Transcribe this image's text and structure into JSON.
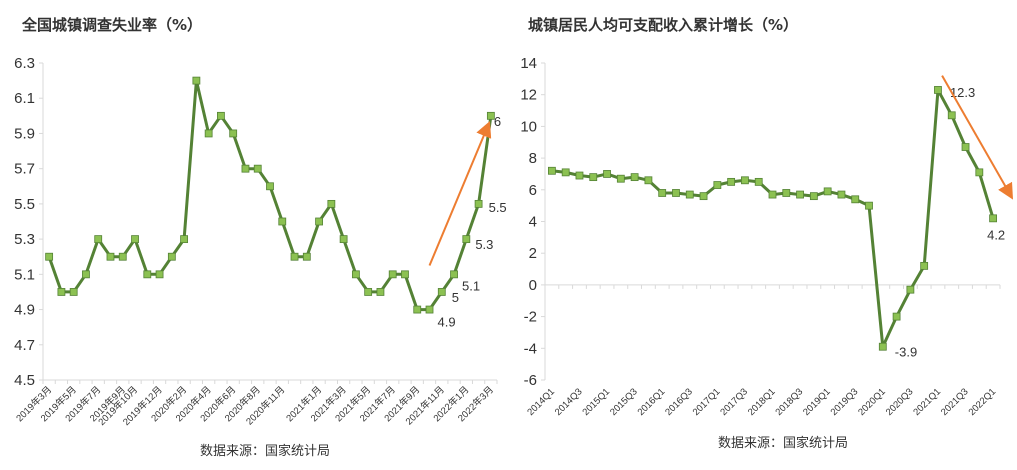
{
  "charts_meta": {
    "left_source": "数据来源：国家统计局",
    "right_source": "数据来源：国家统计局"
  },
  "colors": {
    "line": "#548235",
    "marker": "#8cc152",
    "arrow": "#ed7d31",
    "axis": "#d9d9d9",
    "text": "#333333"
  },
  "chart_data": [
    {
      "type": "line",
      "title": "全国城镇调查失业率（%）",
      "xlabel": "",
      "ylabel": "",
      "ylim": [
        4.5,
        6.3
      ],
      "yticks": [
        "4.5",
        "4.7",
        "4.9",
        "5.1",
        "5.3",
        "5.5",
        "5.7",
        "5.9",
        "6.1",
        "6.3"
      ],
      "grid": false,
      "legend": "none",
      "x": [
        "2019年3月",
        "2019年4月",
        "2019年5月",
        "2019年6月",
        "2019年7月",
        "2019年8月",
        "2019年9月",
        "2019年10月",
        "2019年11月",
        "2019年12月",
        "2020年1月",
        "2020年2月",
        "2020年3月",
        "2020年4月",
        "2020年5月",
        "2020年6月",
        "2020年7月",
        "2020年8月",
        "2020年9月",
        "2020年10月",
        "2020年11月",
        "2020年12月",
        "2021年1月",
        "2021年2月",
        "2021年3月",
        "2021年4月",
        "2021年5月",
        "2021年6月",
        "2021年7月",
        "2021年8月",
        "2021年9月",
        "2021年10月",
        "2021年11月",
        "2021年12月",
        "2022年1月",
        "2022年2月",
        "2022年3月"
      ],
      "xtick_labels": [
        "2019年3月",
        "2019年5月",
        "2019年7月",
        "2019年9月",
        "2019年10月",
        "2019年12月",
        "2020年2月",
        "2020年4月",
        "2020年6月",
        "2020年8月",
        "2020年11月",
        "2021年1月",
        "2021年3月",
        "2021年5月",
        "2021年7月",
        "2021年9月",
        "2021年11月",
        "2022年1月",
        "2022年3月"
      ],
      "xtick_index": [
        0,
        2,
        4,
        6,
        7,
        9,
        11,
        13,
        15,
        17,
        19,
        22,
        24,
        26,
        28,
        30,
        32,
        34,
        36
      ],
      "values": [
        5.2,
        5.0,
        5.0,
        5.1,
        5.3,
        5.2,
        5.2,
        5.3,
        5.1,
        5.1,
        5.2,
        5.3,
        6.2,
        5.9,
        6.0,
        5.9,
        5.7,
        5.7,
        5.6,
        5.4,
        5.2,
        5.2,
        5.4,
        5.5,
        5.3,
        5.1,
        5.0,
        5.0,
        5.1,
        5.1,
        4.9,
        4.9,
        5.0,
        5.1,
        5.3,
        5.5,
        6.0
      ],
      "data_labels": [
        {
          "i": 31,
          "text": "4.9"
        },
        {
          "i": 32,
          "text": "5"
        },
        {
          "i": 33,
          "text": "5.1"
        },
        {
          "i": 34,
          "text": "5.3"
        },
        {
          "i": 35,
          "text": "5.5"
        },
        {
          "i": 36,
          "text": "6"
        }
      ],
      "arrow": {
        "direction": "up",
        "from": {
          "i": 31,
          "v": 5.15
        },
        "to": {
          "i": 35.8,
          "v": 5.95
        }
      }
    },
    {
      "type": "line",
      "title": "城镇居民人均可支配收入累计增长（%）",
      "xlabel": "",
      "ylabel": "",
      "ylim": [
        -6,
        14
      ],
      "yticks": [
        "-6",
        "-4",
        "-2",
        "0",
        "2",
        "4",
        "6",
        "8",
        "10",
        "12",
        "14"
      ],
      "grid": false,
      "legend": "none",
      "x": [
        "2014Q1",
        "2014Q2",
        "2014Q3",
        "2014Q4",
        "2015Q1",
        "2015Q2",
        "2015Q3",
        "2015Q4",
        "2016Q1",
        "2016Q2",
        "2016Q3",
        "2016Q4",
        "2017Q1",
        "2017Q2",
        "2017Q3",
        "2017Q4",
        "2018Q1",
        "2018Q2",
        "2018Q3",
        "2018Q4",
        "2019Q1",
        "2019Q2",
        "2019Q3",
        "2019Q4",
        "2020Q1",
        "2020Q2",
        "2020Q3",
        "2020Q4",
        "2021Q1",
        "2021Q2",
        "2021Q3",
        "2021Q4",
        "2022Q1"
      ],
      "xtick_labels": [
        "2014Q1",
        "2014Q3",
        "2015Q1",
        "2015Q3",
        "2016Q1",
        "2016Q3",
        "2017Q1",
        "2017Q3",
        "2018Q1",
        "2018Q3",
        "2019Q1",
        "2019Q3",
        "2020Q1",
        "2020Q3",
        "2021Q1",
        "2021Q3",
        "2022Q1"
      ],
      "xtick_index": [
        0,
        2,
        4,
        6,
        8,
        10,
        12,
        14,
        16,
        18,
        20,
        22,
        24,
        26,
        28,
        30,
        32
      ],
      "values": [
        7.2,
        7.1,
        6.9,
        6.8,
        7.0,
        6.7,
        6.8,
        6.6,
        5.8,
        5.8,
        5.7,
        5.6,
        6.3,
        6.5,
        6.6,
        6.5,
        5.7,
        5.8,
        5.7,
        5.6,
        5.9,
        5.7,
        5.4,
        5.0,
        -3.9,
        -2.0,
        -0.3,
        1.2,
        12.3,
        10.7,
        8.7,
        7.1,
        4.2
      ],
      "data_labels": [
        {
          "i": 24,
          "text": "-3.9"
        },
        {
          "i": 28,
          "text": "12.3"
        },
        {
          "i": 32,
          "text": "4.2"
        }
      ],
      "arrow": {
        "direction": "down",
        "from": {
          "i": 28.3,
          "v": 13.2
        },
        "to": {
          "i": 33.3,
          "v": 5.6
        }
      }
    }
  ]
}
